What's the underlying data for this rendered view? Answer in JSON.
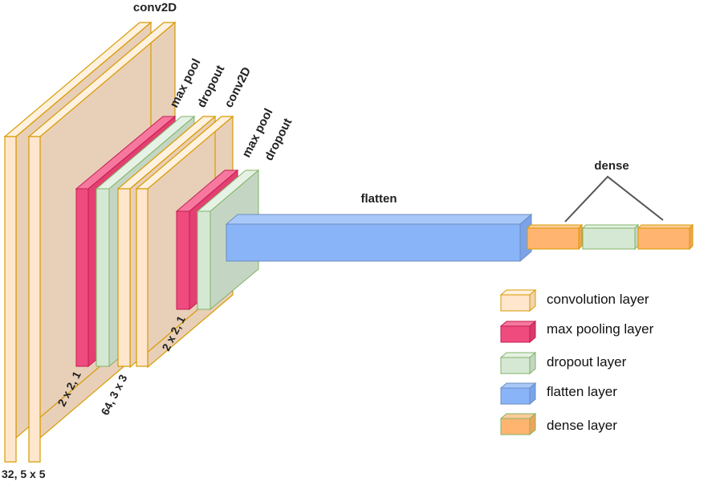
{
  "colors": {
    "conv_face": "#FFE6CC",
    "conv_stroke": "#D79B00",
    "conv_top": "#FFF1E0",
    "conv_back": "#E8CFB8",
    "conv_back_stroke": "#D79B00",
    "pool_face": "#F04B7E",
    "pool_top": "#F7789F",
    "pool_stroke": "#C21E52",
    "drop_face": "#D5E8D4",
    "drop_top": "#E6F2E5",
    "drop_stroke": "#82B366",
    "drop_back": "#C4D6C3",
    "flat_face": "#8AB4F8",
    "flat_top": "#A9C8FA",
    "flat_stroke": "#6C8EBF",
    "flat_side": "#7AA3EA",
    "dense_face": "#FFB570",
    "dense_top": "#FFCB99",
    "dense_stroke": "#D79B00"
  },
  "labels": {
    "conv2d_1": "conv2D",
    "max_pool_1": "max pool",
    "dropout_1": "dropout",
    "conv2d_2": "conv2D",
    "max_pool_2": "max pool",
    "dropout_2": "dropout",
    "flatten": "flatten",
    "dense": "dense",
    "dim_conv1": "32, 5 x 5",
    "dim_pool1": "2 x 2, 1",
    "dim_conv2": "64, 3 x 3",
    "dim_pool2": "2 x 2, 1"
  },
  "legend": [
    {
      "label": "convolution layer",
      "kind": "conv"
    },
    {
      "label": "max pooling layer",
      "kind": "pool"
    },
    {
      "label": "dropout layer",
      "kind": "drop"
    },
    {
      "label": "flatten layer",
      "kind": "flat"
    },
    {
      "label": "dense layer",
      "kind": "dense"
    }
  ]
}
